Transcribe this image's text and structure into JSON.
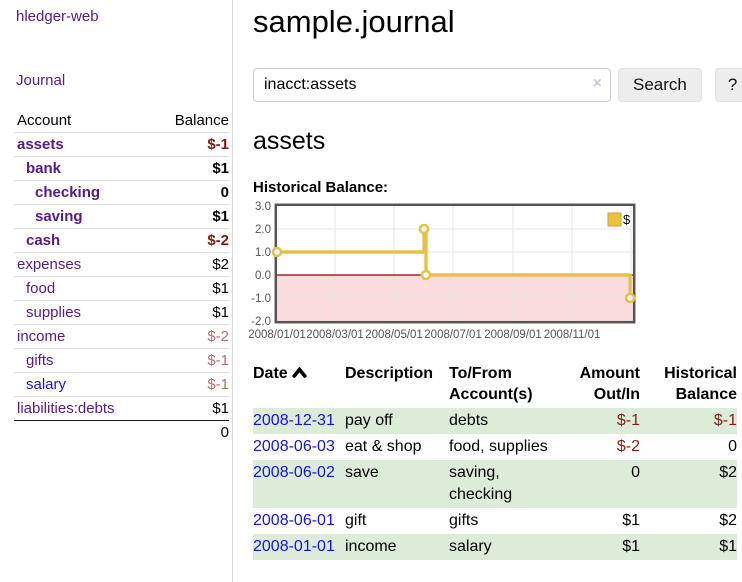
{
  "sidebar": {
    "brand": "hledger-web",
    "journal_link": "Journal",
    "accounts": {
      "headers": {
        "account": "Account",
        "balance": "Balance"
      },
      "rows": [
        {
          "name": "assets",
          "indent": 1,
          "balance": "$-1",
          "in_focus": true,
          "neg": "strong"
        },
        {
          "name": "bank",
          "indent": 2,
          "balance": "$1",
          "in_focus": true
        },
        {
          "name": "checking",
          "indent": 3,
          "balance": "0",
          "in_focus": true
        },
        {
          "name": "saving",
          "indent": 3,
          "balance": "$1",
          "in_focus": true
        },
        {
          "name": "cash",
          "indent": 2,
          "balance": "$-2",
          "in_focus": true,
          "neg": "strong"
        },
        {
          "name": "expenses",
          "indent": 1,
          "balance": "$2"
        },
        {
          "name": "food",
          "indent": 2,
          "balance": "$1"
        },
        {
          "name": "supplies",
          "indent": 2,
          "balance": "$1"
        },
        {
          "name": "income",
          "indent": 1,
          "balance": "$-2",
          "neg": "soft"
        },
        {
          "name": "gifts",
          "indent": 2,
          "balance": "$-1",
          "neg": "soft"
        },
        {
          "name": "salary",
          "indent": 2,
          "balance": "$-1",
          "neg": "soft",
          "unvisited": true
        },
        {
          "name": "liabilities:debts",
          "indent": 1,
          "balance": "$1"
        }
      ],
      "total": "0"
    }
  },
  "main": {
    "title": "sample.journal",
    "search": {
      "value": "inacct:assets",
      "clear_icon": "×",
      "search_button": "Search",
      "help_button": "?"
    },
    "account_heading": "assets",
    "chart_label": "Historical Balance:"
  },
  "chart_data": {
    "type": "line",
    "style": "step",
    "title": "Historical Balance:",
    "series": [
      {
        "name": "$",
        "color": "#edc240",
        "points": [
          {
            "date": "2008-01-01",
            "day": 0,
            "y": 1
          },
          {
            "date": "2008-06-01",
            "day": 152,
            "y": 2
          },
          {
            "date": "2008-06-03",
            "day": 154,
            "y": 0
          },
          {
            "date": "2008-12-31",
            "day": 365,
            "y": -1
          }
        ]
      }
    ],
    "ylim": [
      -2,
      3
    ],
    "y_ticks": [
      {
        "v": 3,
        "label": "3.0"
      },
      {
        "v": 2,
        "label": "2.0"
      },
      {
        "v": 1,
        "label": "1.0"
      },
      {
        "v": 0,
        "label": "0.0"
      },
      {
        "v": -1,
        "label": "-1.0"
      },
      {
        "v": -2,
        "label": "-2.0"
      }
    ],
    "x_ticks": [
      {
        "day": 0,
        "label": "2008/01/01"
      },
      {
        "day": 60,
        "label": "2008/03/01"
      },
      {
        "day": 121,
        "label": "2008/05/01"
      },
      {
        "day": 182,
        "label": "2008/07/01"
      },
      {
        "day": 244,
        "label": "2008/09/01"
      },
      {
        "day": 305,
        "label": "2008/11/01"
      },
      {
        "day": 366,
        "label": ""
      }
    ],
    "xlim_days": [
      0,
      368
    ],
    "legend_position": "top-right",
    "legend_label": "$",
    "grid": true,
    "colors": {
      "line": "#e7c04a",
      "marker_fill": "#ffffff",
      "grid": "#e6e6e6",
      "border": "#545454",
      "zero_line": "#8b0000",
      "negative_fill": "#fbdcdc",
      "tick_text": "#545454",
      "legend_swatch_border": "#c9a42f"
    }
  },
  "register": {
    "headers": [
      {
        "label": "Date",
        "align": "left",
        "sorted": true
      },
      {
        "label": "Description",
        "align": "left"
      },
      {
        "label": "To/From\nAccount(s)",
        "align": "left"
      },
      {
        "label": "Amount\nOut/In",
        "align": "right"
      },
      {
        "label": "Historical\nBalance",
        "align": "right"
      }
    ],
    "rows": [
      {
        "date": "2008-12-31",
        "description": "pay off",
        "accounts": "debts",
        "amount": "$-1",
        "amount_neg": true,
        "balance": "$-1",
        "balance_neg": true
      },
      {
        "date": "2008-06-03",
        "description": "eat & shop",
        "accounts": "food, supplies",
        "amount": "$-2",
        "amount_neg": true,
        "balance": "0"
      },
      {
        "date": "2008-06-02",
        "description": "save",
        "accounts": "saving, checking",
        "amount": "0",
        "balance": "$2"
      },
      {
        "date": "2008-06-01",
        "description": "gift",
        "accounts": "gifts",
        "amount": "$1",
        "balance": "$2"
      },
      {
        "date": "2008-01-01",
        "description": "income",
        "accounts": "salary",
        "amount": "$1",
        "balance": "$1"
      }
    ]
  }
}
